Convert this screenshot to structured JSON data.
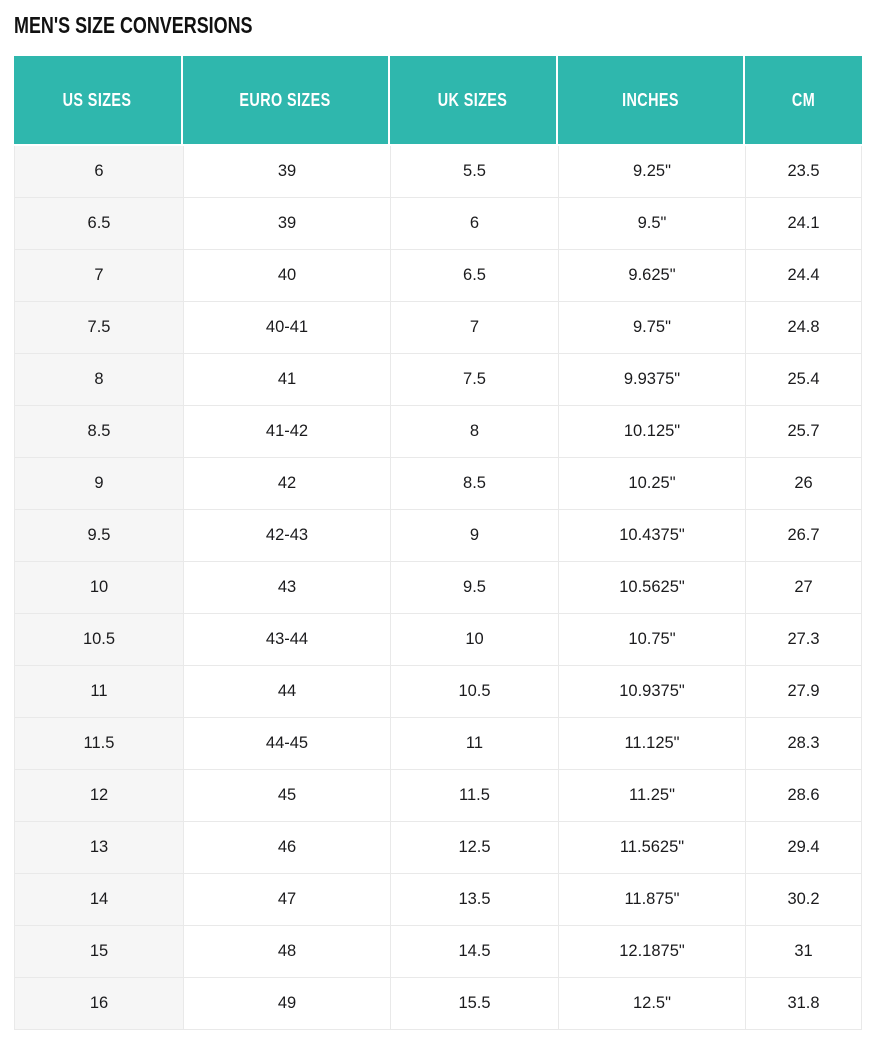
{
  "page": {
    "title": "MEN'S SIZE CONVERSIONS"
  },
  "colors": {
    "header_bg": "#2fb7ad",
    "header_text": "#ffffff",
    "first_column_bg": "#f6f6f6",
    "row_border": "#e9e9e9",
    "body_text": "#1b1b1d",
    "title_text": "#111111"
  },
  "table": {
    "columns": [
      "US SIZES",
      "EURO SIZES",
      "UK SIZES",
      "INCHES",
      "CM"
    ],
    "rows": [
      [
        "6",
        "39",
        "5.5",
        "9.25\"",
        "23.5"
      ],
      [
        "6.5",
        "39",
        "6",
        "9.5\"",
        "24.1"
      ],
      [
        "7",
        "40",
        "6.5",
        "9.625\"",
        "24.4"
      ],
      [
        "7.5",
        "40-41",
        "7",
        "9.75\"",
        "24.8"
      ],
      [
        "8",
        "41",
        "7.5",
        "9.9375\"",
        "25.4"
      ],
      [
        "8.5",
        "41-42",
        "8",
        "10.125\"",
        "25.7"
      ],
      [
        "9",
        "42",
        "8.5",
        "10.25\"",
        "26"
      ],
      [
        "9.5",
        "42-43",
        "9",
        "10.4375\"",
        "26.7"
      ],
      [
        "10",
        "43",
        "9.5",
        "10.5625\"",
        "27"
      ],
      [
        "10.5",
        "43-44",
        "10",
        "10.75\"",
        "27.3"
      ],
      [
        "11",
        "44",
        "10.5",
        "10.9375\"",
        "27.9"
      ],
      [
        "11.5",
        "44-45",
        "11",
        "11.125\"",
        "28.3"
      ],
      [
        "12",
        "45",
        "11.5",
        "11.25\"",
        "28.6"
      ],
      [
        "13",
        "46",
        "12.5",
        "11.5625\"",
        "29.4"
      ],
      [
        "14",
        "47",
        "13.5",
        "11.875\"",
        "30.2"
      ],
      [
        "15",
        "48",
        "14.5",
        "12.1875\"",
        "31"
      ],
      [
        "16",
        "49",
        "15.5",
        "12.5\"",
        "31.8"
      ]
    ]
  }
}
